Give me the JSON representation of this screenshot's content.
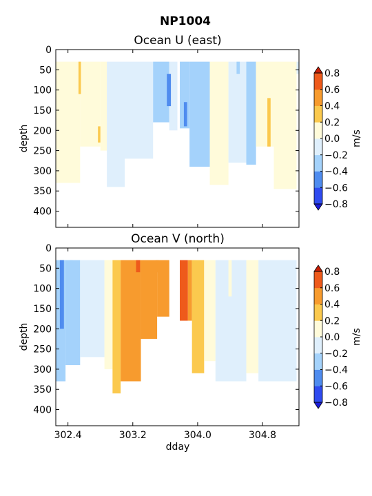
{
  "figure": {
    "suptitle": "NP1004"
  },
  "colors": {
    "levels": [
      -0.8,
      -0.6,
      -0.4,
      -0.2,
      0.0,
      0.2,
      0.4,
      0.6,
      0.8
    ],
    "bands": [
      "#2f4bf0",
      "#4f8cef",
      "#a4d2fb",
      "#dfeffc",
      "#fffbda",
      "#fbc94e",
      "#f79b2e",
      "#ee5a1b"
    ],
    "under": "#1b1bd9",
    "over": "#c81f06"
  },
  "chart_data": [
    {
      "type": "heatmap",
      "title": "Ocean U (east)",
      "xlabel": "",
      "ylabel": "depth",
      "xlim": [
        302.25,
        305.25
      ],
      "ylim": [
        440,
        0
      ],
      "yticks": [
        "0",
        "50",
        "100",
        "150",
        "200",
        "250",
        "300",
        "350",
        "400"
      ],
      "colorbar": {
        "label": "m/s",
        "ticks": [
          "0.8",
          "0.6",
          "0.4",
          "0.2",
          "0.0",
          "−0.2",
          "−0.4",
          "−0.6",
          "−0.8"
        ]
      },
      "segments": [
        {
          "x": [
            302.25,
            302.55
          ],
          "bottom": 330,
          "v": 0.1
        },
        {
          "x": [
            302.55,
            302.8
          ],
          "bottom": 240,
          "v": 0.1
        },
        {
          "x": [
            302.8,
            302.88
          ],
          "bottom": 250,
          "v": 0.1
        },
        {
          "x": [
            302.88,
            303.1
          ],
          "bottom": 340,
          "v": -0.1
        },
        {
          "x": [
            303.1,
            303.45
          ],
          "bottom": 270,
          "v": -0.1
        },
        {
          "x": [
            303.45,
            303.65
          ],
          "bottom": 180,
          "v": -0.25
        },
        {
          "x": [
            303.65,
            303.75
          ],
          "bottom": 200,
          "v": -0.1
        },
        {
          "x": [
            303.78,
            303.9
          ],
          "bottom": 195,
          "v": -0.3
        },
        {
          "x": [
            303.9,
            304.15
          ],
          "bottom": 290,
          "v": -0.25
        },
        {
          "x": [
            304.15,
            304.38
          ],
          "bottom": 335,
          "v": 0.1
        },
        {
          "x": [
            304.38,
            304.6
          ],
          "bottom": 280,
          "v": -0.1
        },
        {
          "x": [
            304.6,
            304.72
          ],
          "bottom": 285,
          "v": -0.25
        },
        {
          "x": [
            304.72,
            304.94
          ],
          "bottom": 240,
          "v": 0.1
        },
        {
          "x": [
            304.94,
            305.22
          ],
          "bottom": 345,
          "v": 0.1
        },
        {
          "x": [
            305.22,
            305.25
          ],
          "bottom": 60,
          "v": -0.1
        }
      ],
      "patches": [
        {
          "x": [
            302.53,
            302.56
          ],
          "top": 30,
          "bottom": 110,
          "v": 0.3
        },
        {
          "x": [
            302.77,
            302.8
          ],
          "top": 190,
          "bottom": 230,
          "v": 0.3
        },
        {
          "x": [
            303.62,
            303.67
          ],
          "top": 60,
          "bottom": 140,
          "v": -0.5
        },
        {
          "x": [
            303.83,
            303.87
          ],
          "top": 130,
          "bottom": 190,
          "v": -0.5
        },
        {
          "x": [
            304.48,
            304.52
          ],
          "top": 30,
          "bottom": 60,
          "v": -0.25
        },
        {
          "x": [
            304.86,
            304.9
          ],
          "top": 120,
          "bottom": 240,
          "v": 0.3
        }
      ]
    },
    {
      "type": "heatmap",
      "title": "Ocean V (north)",
      "xlabel": "dday",
      "ylabel": "depth",
      "xlim": [
        302.25,
        305.25
      ],
      "ylim": [
        440,
        0
      ],
      "xticks": [
        {
          "value": 302.4,
          "label": "302.4"
        },
        {
          "value": 303.2,
          "label": "303.2"
        },
        {
          "value": 304.0,
          "label": "304.0"
        },
        {
          "value": 304.8,
          "label": "304.8"
        }
      ],
      "yticks": [
        "0",
        "50",
        "100",
        "150",
        "200",
        "250",
        "300",
        "350",
        "400"
      ],
      "colorbar": {
        "label": "m/s",
        "ticks": [
          "0.8",
          "0.6",
          "0.4",
          "0.2",
          "0.0",
          "−0.2",
          "−0.4",
          "−0.6",
          "−0.8"
        ]
      },
      "segments": [
        {
          "x": [
            302.25,
            302.37
          ],
          "bottom": 330,
          "v": -0.3
        },
        {
          "x": [
            302.37,
            302.55
          ],
          "bottom": 290,
          "v": -0.25
        },
        {
          "x": [
            302.55,
            302.85
          ],
          "bottom": 270,
          "v": -0.1
        },
        {
          "x": [
            302.85,
            302.95
          ],
          "bottom": 300,
          "v": 0.1
        },
        {
          "x": [
            302.95,
            303.05
          ],
          "bottom": 360,
          "v": 0.3
        },
        {
          "x": [
            303.05,
            303.3
          ],
          "bottom": 330,
          "v": 0.5
        },
        {
          "x": [
            303.3,
            303.5
          ],
          "bottom": 225,
          "v": 0.4
        },
        {
          "x": [
            303.5,
            303.65
          ],
          "bottom": 170,
          "v": 0.5
        },
        {
          "x": [
            303.78,
            303.88
          ],
          "bottom": 180,
          "v": 0.7
        },
        {
          "x": [
            303.88,
            303.93
          ],
          "bottom": 180,
          "v": 0.5
        },
        {
          "x": [
            303.93,
            304.08
          ],
          "bottom": 310,
          "v": 0.3
        },
        {
          "x": [
            304.08,
            304.22
          ],
          "bottom": 280,
          "v": 0.1
        },
        {
          "x": [
            304.22,
            304.6
          ],
          "bottom": 330,
          "v": -0.1
        },
        {
          "x": [
            304.6,
            304.75
          ],
          "bottom": 310,
          "v": 0.1
        },
        {
          "x": [
            304.75,
            305.22
          ],
          "bottom": 330,
          "v": -0.1
        }
      ],
      "patches": [
        {
          "x": [
            302.3,
            302.35
          ],
          "top": 30,
          "bottom": 200,
          "v": -0.5
        },
        {
          "x": [
            302.42,
            302.46
          ],
          "top": 30,
          "bottom": 100,
          "v": -0.3
        },
        {
          "x": [
            303.24,
            303.29
          ],
          "top": 30,
          "bottom": 60,
          "v": 0.7
        },
        {
          "x": [
            303.48,
            303.52
          ],
          "top": 30,
          "bottom": 60,
          "v": 0.5
        },
        {
          "x": [
            304.38,
            304.42
          ],
          "top": 30,
          "bottom": 120,
          "v": 0.1
        }
      ]
    }
  ]
}
